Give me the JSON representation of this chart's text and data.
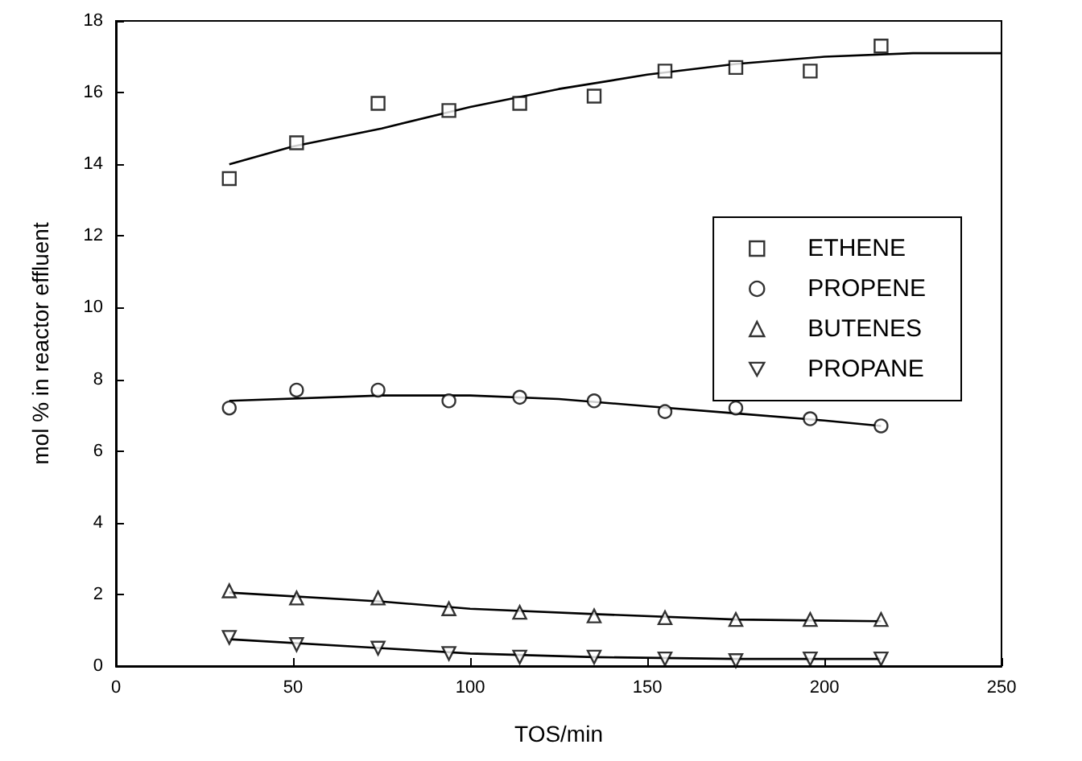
{
  "chart_data": {
    "type": "scatter",
    "xlabel": "TOS/min",
    "ylabel": "mol % in reactor effluent",
    "x": [
      32,
      51,
      74,
      94,
      114,
      135,
      155,
      175,
      196,
      216
    ],
    "xlim": [
      0,
      250
    ],
    "xticks": [
      0,
      50,
      100,
      150,
      200,
      250
    ],
    "ylim": [
      0,
      18
    ],
    "yticks": [
      0,
      2,
      4,
      6,
      8,
      10,
      12,
      14,
      16,
      18
    ],
    "grid": false,
    "legend": "right",
    "series": [
      {
        "name": "ETHENE",
        "color": "#000000",
        "marker": "square",
        "values": [
          13.6,
          14.6,
          15.7,
          15.5,
          15.7,
          15.9,
          16.6,
          16.7,
          16.6,
          17.3
        ]
      },
      {
        "name": "PROPENE",
        "color": "#000000",
        "marker": "circle",
        "values": [
          7.2,
          7.7,
          7.7,
          7.4,
          7.5,
          7.4,
          7.1,
          7.2,
          6.9,
          6.7
        ]
      },
      {
        "name": "BUTENES",
        "color": "#000000",
        "marker": "triangle",
        "values": [
          2.1,
          1.9,
          1.9,
          1.6,
          1.5,
          1.4,
          1.35,
          1.3,
          1.3,
          1.3
        ]
      },
      {
        "name": "PROPANE",
        "color": "#000000",
        "marker": "triangle-down",
        "values": [
          0.8,
          0.6,
          0.5,
          0.35,
          0.25,
          0.25,
          0.2,
          0.15,
          0.2,
          0.2
        ]
      },
      {
        "type": "line",
        "color": "#000000",
        "marker": "none",
        "x": [
          32,
          50,
          75,
          100,
          125,
          150,
          175,
          200,
          225,
          250
        ],
        "values": [
          14.0,
          14.5,
          15.0,
          15.6,
          16.1,
          16.5,
          16.8,
          17.0,
          17.1,
          17.1
        ]
      },
      {
        "type": "line",
        "color": "#000000",
        "marker": "none",
        "x": [
          32,
          75,
          100,
          125,
          150,
          175,
          200,
          216
        ],
        "values": [
          7.4,
          7.55,
          7.55,
          7.45,
          7.25,
          7.05,
          6.85,
          6.7
        ]
      },
      {
        "type": "line",
        "color": "#000000",
        "marker": "none",
        "x": [
          32,
          75,
          100,
          135,
          175,
          216
        ],
        "values": [
          2.05,
          1.8,
          1.6,
          1.45,
          1.3,
          1.25
        ]
      },
      {
        "type": "line",
        "color": "#000000",
        "marker": "none",
        "x": [
          32,
          75,
          100,
          135,
          175,
          216
        ],
        "values": [
          0.75,
          0.5,
          0.35,
          0.25,
          0.2,
          0.2
        ]
      }
    ]
  }
}
